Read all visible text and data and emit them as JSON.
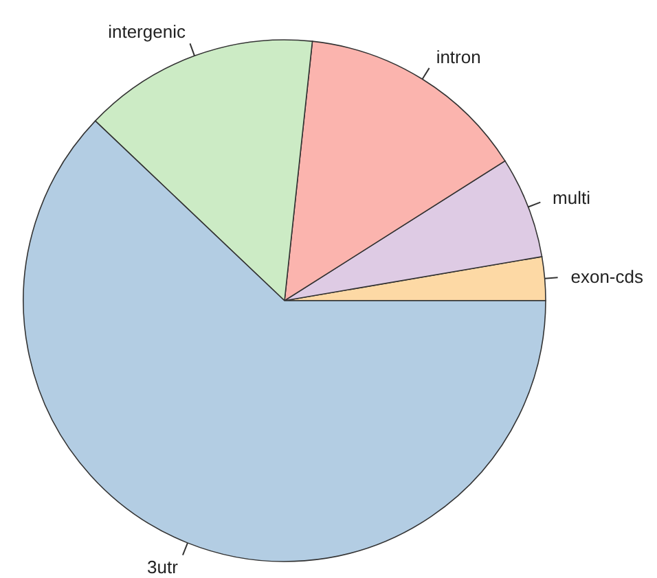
{
  "chart_data": {
    "type": "pie",
    "categories": [
      "exon-cds",
      "multi",
      "intron",
      "intergenic",
      "3utr"
    ],
    "values": [
      2.7,
      6.3,
      14.3,
      14.6,
      62.1
    ],
    "colors": [
      "#fdd9a5",
      "#decbe4",
      "#fbb4ae",
      "#ccebc5",
      "#b3cde3"
    ]
  }
}
